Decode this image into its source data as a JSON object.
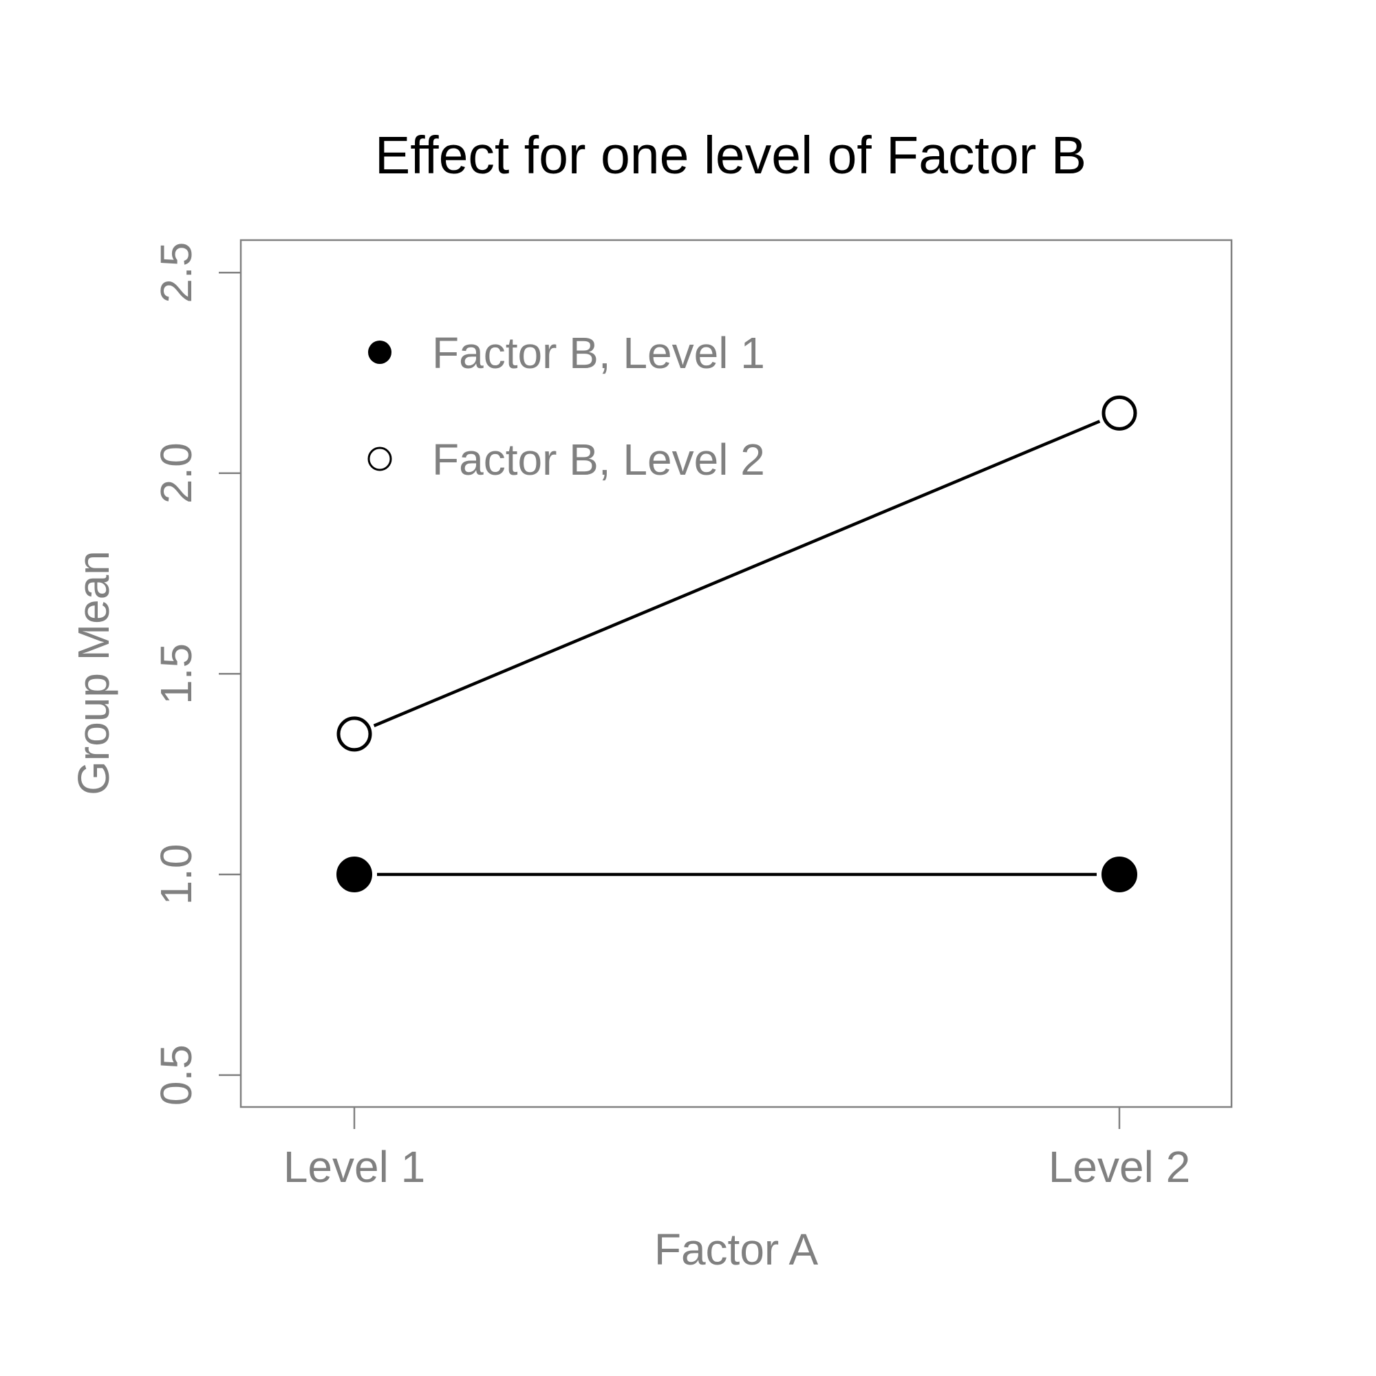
{
  "chart_data": {
    "type": "line",
    "title": "Effect for one level of Factor B",
    "xlabel": "Factor A",
    "ylabel": "Group Mean",
    "categories": [
      "Level 1",
      "Level 2"
    ],
    "ylim": [
      0.5,
      2.5
    ],
    "yticks": [
      "0.5",
      "1.0",
      "1.5",
      "2.0",
      "2.5"
    ],
    "series": [
      {
        "name": "Factor B, Level 1",
        "values": [
          1.0,
          1.0
        ],
        "marker": "filled-circle",
        "color": "#000000"
      },
      {
        "name": "Factor B, Level 2",
        "values": [
          1.35,
          2.15
        ],
        "marker": "open-circle",
        "color": "#000000"
      }
    ],
    "legend_position": "top-left",
    "grid": false,
    "axis_color": "#808080"
  }
}
